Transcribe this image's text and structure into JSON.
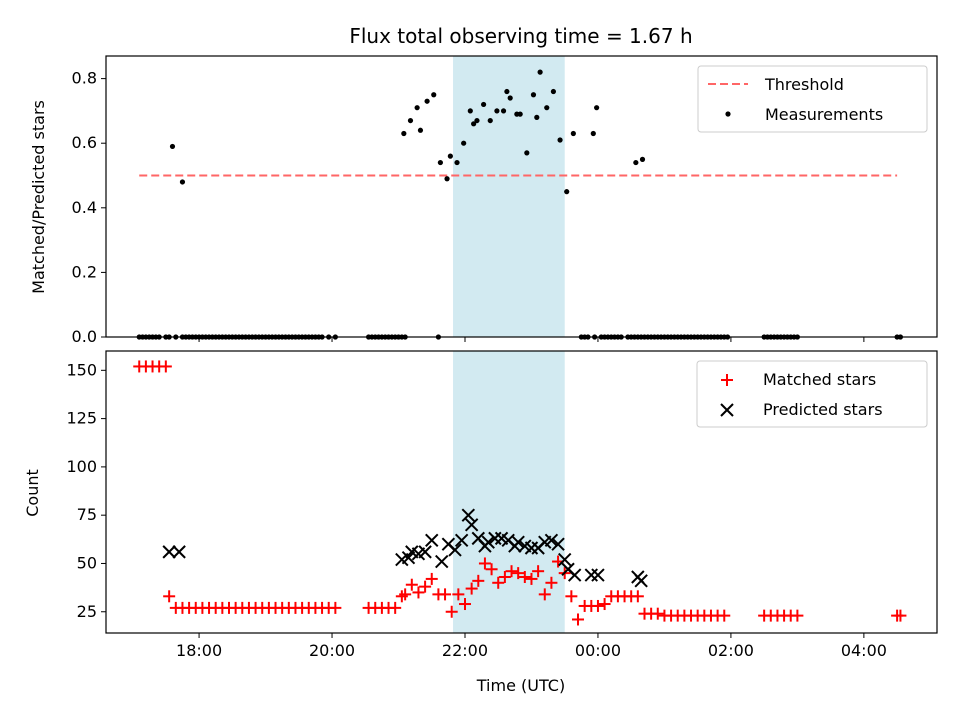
{
  "chart_data": {
    "title": "Flux total observing time = 1.67 h",
    "xlabel": "Time (UTC)",
    "x_unit": "hours since 00:00 UTC (negative = previous day)",
    "xlim": [
      -7.4,
      5.1
    ],
    "x_ticks": [
      {
        "value": -6,
        "label": "18:00"
      },
      {
        "value": -4,
        "label": "20:00"
      },
      {
        "value": -2,
        "label": "22:00"
      },
      {
        "value": 0,
        "label": "00:00"
      },
      {
        "value": 2,
        "label": "02:00"
      },
      {
        "value": 4,
        "label": "04:00"
      }
    ],
    "highlight_span": {
      "x_start": -2.18,
      "x_end": -0.5,
      "color": "#add8e6"
    },
    "panels": [
      {
        "type": "scatter",
        "ylabel": "Matched/Predicted stars",
        "ylim": [
          0,
          0.87
        ],
        "y_ticks": [
          0.0,
          0.2,
          0.4,
          0.6,
          0.8
        ],
        "y_tick_labels": [
          "0.0",
          "0.2",
          "0.4",
          "0.6",
          "0.8"
        ],
        "legend_position": "top-right",
        "series": [
          {
            "name": "Threshold",
            "kind": "dashed-line",
            "color": "#ff6666",
            "x": [
              -6.9,
              4.5
            ],
            "y": [
              0.5,
              0.5
            ]
          },
          {
            "name": "Measurements",
            "kind": "dots",
            "color": "#000000",
            "x": [
              -6.9,
              -6.85,
              -6.8,
              -6.75,
              -6.7,
              -6.65,
              -6.6,
              -6.5,
              -6.45,
              -6.35,
              -6.25,
              -6.2,
              -6.15,
              -6.1,
              -6.05,
              -6.0,
              -5.95,
              -5.9,
              -5.85,
              -5.8,
              -5.75,
              -5.7,
              -5.65,
              -5.6,
              -5.55,
              -5.5,
              -5.45,
              -5.4,
              -5.35,
              -5.3,
              -5.25,
              -5.2,
              -5.15,
              -5.1,
              -5.05,
              -5.0,
              -4.95,
              -4.9,
              -4.85,
              -4.8,
              -4.75,
              -4.7,
              -4.65,
              -4.6,
              -4.55,
              -4.5,
              -4.45,
              -4.4,
              -4.35,
              -4.3,
              -4.25,
              -4.2,
              -4.15,
              -4.05,
              -3.95,
              -3.45,
              -3.4,
              -3.35,
              -3.3,
              -3.25,
              -3.2,
              -3.15,
              -3.1,
              -3.05,
              -3.0,
              -2.95,
              -2.9,
              -2.4,
              -0.25,
              -0.2,
              -0.15,
              -0.05,
              0.05,
              0.1,
              0.15,
              0.2,
              0.25,
              0.3,
              0.35,
              0.45,
              0.5,
              0.55,
              0.6,
              0.65,
              0.7,
              0.75,
              0.8,
              0.85,
              0.9,
              0.95,
              1.0,
              1.05,
              1.1,
              1.15,
              1.2,
              1.25,
              1.3,
              1.35,
              1.4,
              1.45,
              1.5,
              1.55,
              1.6,
              1.65,
              1.7,
              1.75,
              1.8,
              1.85,
              1.9,
              1.95,
              2.5,
              2.55,
              2.6,
              2.65,
              2.7,
              2.75,
              2.8,
              2.85,
              2.9,
              2.95,
              3.0,
              4.5,
              4.55,
              -6.4,
              -6.25,
              -2.92,
              -2.82,
              -2.72,
              -2.67,
              -2.57,
              -2.47,
              -2.37,
              -2.27,
              -2.22,
              -2.12,
              -2.02,
              -1.92,
              -1.87,
              -1.82,
              -1.72,
              -1.62,
              -1.52,
              -1.42,
              -1.37,
              -1.32,
              -1.22,
              -1.17,
              -1.07,
              -0.97,
              -0.92,
              -0.87,
              -0.77,
              -0.67,
              -0.57,
              -0.47,
              -0.37,
              -0.07,
              -0.02,
              0.57,
              0.67
            ],
            "y": [
              0,
              0,
              0,
              0,
              0,
              0,
              0,
              0,
              0,
              0,
              0,
              0,
              0,
              0,
              0,
              0,
              0,
              0,
              0,
              0,
              0,
              0,
              0,
              0,
              0,
              0,
              0,
              0,
              0,
              0,
              0,
              0,
              0,
              0,
              0,
              0,
              0,
              0,
              0,
              0,
              0,
              0,
              0,
              0,
              0,
              0,
              0,
              0,
              0,
              0,
              0,
              0,
              0,
              0,
              0,
              0,
              0,
              0,
              0,
              0,
              0,
              0,
              0,
              0,
              0,
              0,
              0,
              0,
              0,
              0,
              0,
              0,
              0,
              0,
              0,
              0,
              0,
              0,
              0,
              0,
              0,
              0,
              0,
              0,
              0,
              0,
              0,
              0,
              0,
              0,
              0,
              0,
              0,
              0,
              0,
              0,
              0,
              0,
              0,
              0,
              0,
              0,
              0,
              0,
              0,
              0,
              0,
              0,
              0,
              0,
              0,
              0,
              0,
              0,
              0,
              0,
              0,
              0,
              0,
              0,
              0,
              0,
              0,
              0.59,
              0.48,
              0.63,
              0.67,
              0.71,
              0.64,
              0.73,
              0.75,
              0.54,
              0.49,
              0.56,
              0.54,
              0.6,
              0.7,
              0.66,
              0.67,
              0.72,
              0.67,
              0.7,
              0.7,
              0.76,
              0.74,
              0.69,
              0.69,
              0.57,
              0.75,
              0.68,
              0.82,
              0.71,
              0.76,
              0.61,
              0.45,
              0.63,
              0.63,
              0.71,
              0.54,
              0.55
            ]
          }
        ]
      },
      {
        "type": "scatter",
        "ylabel": "Count",
        "ylim": [
          14,
          160
        ],
        "y_ticks": [
          25,
          50,
          75,
          100,
          125,
          150
        ],
        "y_tick_labels": [
          "25",
          "50",
          "75",
          "100",
          "125",
          "150"
        ],
        "legend_position": "top-right",
        "series": [
          {
            "name": "Matched stars",
            "kind": "plus",
            "color": "#ff0000",
            "x": [
              -6.9,
              -6.8,
              -6.7,
              -6.6,
              -6.5,
              -6.45,
              -6.35,
              -6.25,
              -6.15,
              -6.05,
              -5.95,
              -5.85,
              -5.75,
              -5.65,
              -5.55,
              -5.45,
              -5.35,
              -5.25,
              -5.15,
              -5.05,
              -4.95,
              -4.85,
              -4.75,
              -4.65,
              -4.55,
              -4.45,
              -4.35,
              -4.25,
              -4.15,
              -4.05,
              -3.95,
              -3.45,
              -3.35,
              -3.25,
              -3.15,
              -3.05,
              -2.95,
              -2.9,
              -2.8,
              -2.7,
              -2.6,
              -2.5,
              -2.4,
              -2.3,
              -2.2,
              -2.1,
              -2.0,
              -1.9,
              -1.8,
              -1.7,
              -1.6,
              -1.5,
              -1.4,
              -1.3,
              -1.2,
              -1.1,
              -1.0,
              -0.9,
              -0.8,
              -0.7,
              -0.6,
              -0.5,
              -0.4,
              -0.3,
              -0.2,
              -0.1,
              0.0,
              0.1,
              0.2,
              0.3,
              0.4,
              0.5,
              0.6,
              0.7,
              0.8,
              0.9,
              1.0,
              1.1,
              1.2,
              1.3,
              1.4,
              1.5,
              1.6,
              1.7,
              1.8,
              1.9,
              2.5,
              2.6,
              2.7,
              2.8,
              2.9,
              3.0,
              4.5,
              4.55
            ],
            "y": [
              152,
              152,
              152,
              152,
              152,
              33,
              27,
              27,
              27,
              27,
              27,
              27,
              27,
              27,
              27,
              27,
              27,
              27,
              27,
              27,
              27,
              27,
              27,
              27,
              27,
              27,
              27,
              27,
              27,
              27,
              27,
              27,
              27,
              27,
              27,
              27,
              33,
              34,
              39,
              35,
              38,
              42,
              34,
              34,
              25,
              34,
              29,
              37,
              41,
              50,
              47,
              40,
              43,
              46,
              45,
              43,
              42,
              46,
              34,
              40,
              51,
              45,
              33,
              21,
              28,
              28,
              28,
              29,
              33,
              33,
              33,
              33,
              33,
              24,
              24,
              24,
              23,
              23,
              23,
              23,
              23,
              23,
              23,
              23,
              23,
              23,
              23,
              23,
              23,
              23,
              23,
              23,
              23,
              23
            ]
          },
          {
            "name": "Predicted stars",
            "kind": "cross",
            "color": "#000000",
            "x": [
              -6.45,
              -6.3,
              -2.95,
              -2.85,
              -2.8,
              -2.7,
              -2.6,
              -2.5,
              -2.35,
              -2.25,
              -2.15,
              -2.05,
              -1.95,
              -1.9,
              -1.8,
              -1.7,
              -1.65,
              -1.55,
              -1.45,
              -1.35,
              -1.25,
              -1.2,
              -1.1,
              -1.0,
              -0.9,
              -0.8,
              -0.7,
              -0.6,
              -0.5,
              -0.45,
              -0.35,
              -0.1,
              0.0,
              0.6,
              0.65
            ],
            "y": [
              56,
              56,
              52,
              53,
              56,
              55,
              56,
              62,
              51,
              60,
              57,
              62,
              75,
              70,
              63,
              59,
              61,
              63,
              63,
              62,
              59,
              61,
              59,
              58,
              58,
              61,
              62,
              60,
              52,
              47,
              44,
              44,
              44,
              43,
              41
            ]
          }
        ]
      }
    ]
  }
}
